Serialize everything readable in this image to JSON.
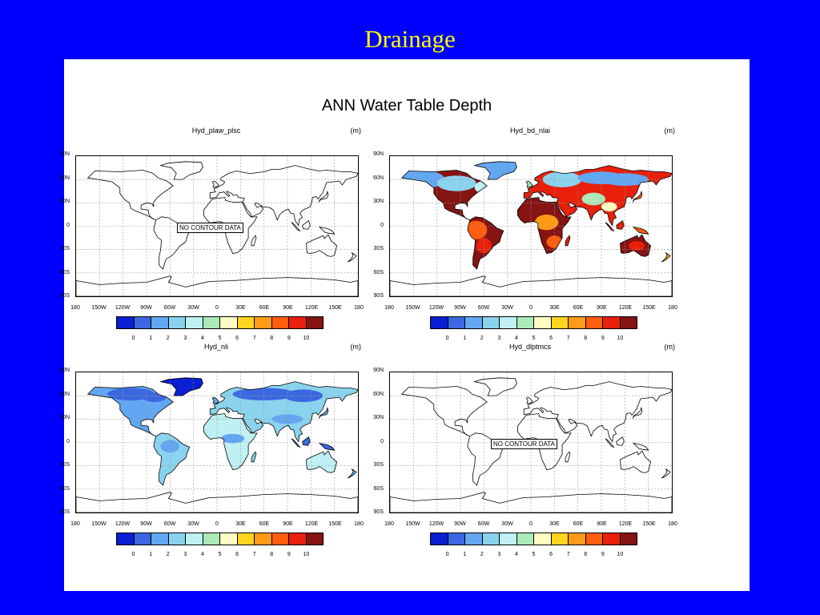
{
  "slide": {
    "title": "Drainage"
  },
  "figure": {
    "title": "ANN Water Table Depth"
  },
  "panels": [
    {
      "name": "Hyd_plaw_plsc",
      "unit": "(m)",
      "note": "NO CONTOUR DATA",
      "fill": "none"
    },
    {
      "name": "Hyd_bd_nlai",
      "unit": "(m)",
      "note": "",
      "fill": "deep"
    },
    {
      "name": "Hyd_nli",
      "unit": "(m)",
      "note": "",
      "fill": "shallow"
    },
    {
      "name": "Hyd_dlptmcs",
      "unit": "(m)",
      "note": "NO CONTOUR DATA",
      "fill": "none"
    }
  ],
  "axes": {
    "lat_labels": [
      "90N",
      "60N",
      "30N",
      "0",
      "30S",
      "60S",
      "90S"
    ],
    "lon_labels": [
      "180",
      "150W",
      "120W",
      "90W",
      "60W",
      "30W",
      "0",
      "30E",
      "60E",
      "90E",
      "120E",
      "150E",
      "180"
    ]
  },
  "colorbar": {
    "labels": [
      "0",
      "1",
      "2",
      "3",
      "4",
      "5",
      "6",
      "7",
      "8",
      "9",
      "10"
    ],
    "colors": [
      "#0a1fd2",
      "#3b68e0",
      "#62a7f2",
      "#8ad3ee",
      "#bff0f4",
      "#aee9b9",
      "#fffdc2",
      "#ffd420",
      "#ff9a18",
      "#ff5e10",
      "#e8200c",
      "#851412"
    ]
  }
}
